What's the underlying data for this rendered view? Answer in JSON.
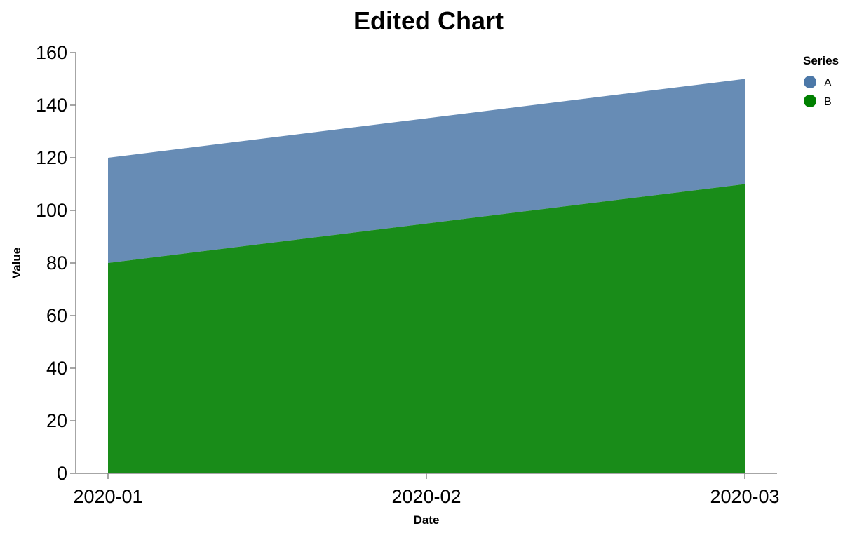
{
  "chart_data": {
    "type": "area",
    "stacked": true,
    "title": "Edited Chart",
    "xlabel": "Date",
    "ylabel": "Value",
    "x": [
      "2020-01",
      "2020-02",
      "2020-03"
    ],
    "ylim": [
      0,
      160
    ],
    "yticks": [
      0,
      20,
      40,
      60,
      80,
      100,
      120,
      140,
      160
    ],
    "grid": false,
    "legend": {
      "title": "Series",
      "placement": "top-right"
    },
    "series": [
      {
        "name": "A",
        "values": [
          40,
          40,
          40
        ],
        "color": "#4c78a8"
      },
      {
        "name": "B",
        "values": [
          80,
          95,
          110
        ],
        "color": "#008000"
      }
    ]
  }
}
